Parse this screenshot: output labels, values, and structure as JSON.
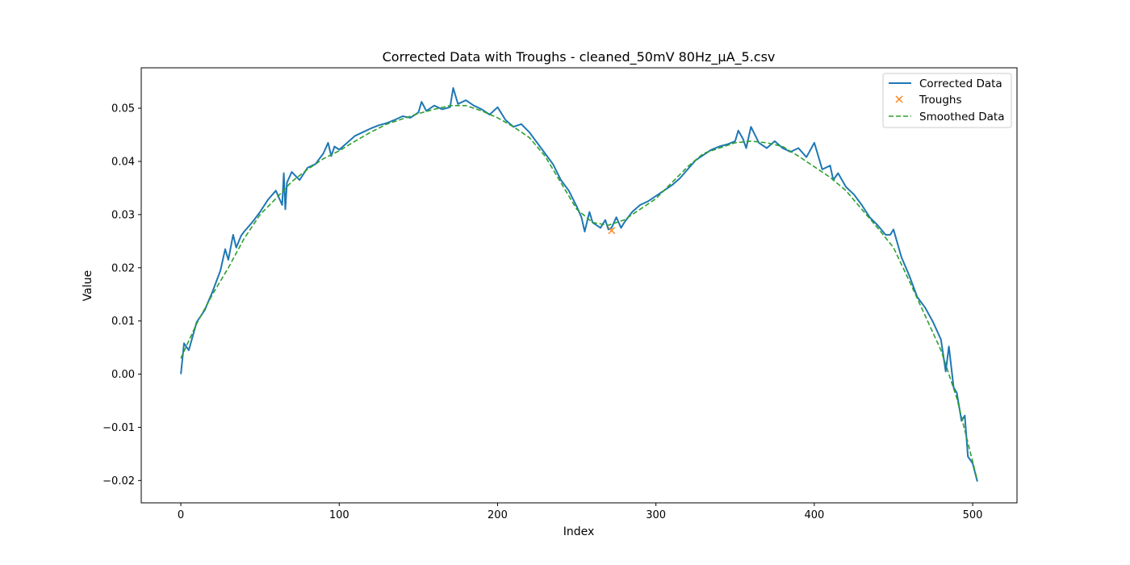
{
  "chart_data": {
    "type": "line",
    "title": "Corrected Data with Troughs - cleaned_50mV 80Hz_µA_5.csv",
    "xlabel": "Index",
    "ylabel": "Value",
    "xlim": [
      -25,
      528
    ],
    "ylim": [
      -0.0242,
      0.0576
    ],
    "x_ticks": [
      0,
      100,
      200,
      300,
      400,
      500
    ],
    "y_ticks": [
      -0.02,
      -0.01,
      0.0,
      0.01,
      0.02,
      0.03,
      0.04,
      0.05
    ],
    "x_tick_labels": [
      "0",
      "100",
      "200",
      "300",
      "400",
      "500"
    ],
    "y_tick_labels": [
      "−0.02",
      "−0.01",
      "0.00",
      "0.01",
      "0.02",
      "0.03",
      "0.04",
      "0.05"
    ],
    "grid": false,
    "legend_position": "top-right",
    "legend": [
      "Corrected Data",
      "Troughs",
      "Smoothed Data"
    ],
    "colors": {
      "corrected": "#1f77b4",
      "troughs": "#ff7f0e",
      "smoothed": "#2ca02c"
    },
    "series": [
      {
        "name": "Corrected Data",
        "style": "solid",
        "x": [
          0,
          2,
          5,
          10,
          15,
          20,
          25,
          28,
          30,
          33,
          35,
          38,
          40,
          45,
          50,
          55,
          60,
          64,
          65,
          66,
          67,
          70,
          75,
          80,
          85,
          90,
          93,
          95,
          97,
          100,
          105,
          110,
          115,
          120,
          125,
          130,
          135,
          140,
          145,
          150,
          152,
          155,
          160,
          165,
          170,
          172,
          175,
          180,
          185,
          190,
          195,
          200,
          205,
          210,
          215,
          220,
          225,
          230,
          235,
          240,
          245,
          250,
          253,
          255,
          258,
          260,
          265,
          268,
          270,
          272,
          275,
          278,
          280,
          285,
          290,
          295,
          300,
          305,
          310,
          315,
          320,
          325,
          330,
          335,
          340,
          345,
          350,
          352,
          355,
          357,
          360,
          365,
          370,
          375,
          380,
          385,
          390,
          395,
          400,
          405,
          410,
          412,
          415,
          420,
          425,
          430,
          435,
          440,
          445,
          448,
          450,
          455,
          460,
          465,
          470,
          475,
          480,
          483,
          485,
          488,
          490,
          493,
          495,
          497,
          500,
          503
        ],
        "y": [
          0.0,
          0.0058,
          0.0045,
          0.0098,
          0.012,
          0.0155,
          0.0195,
          0.0235,
          0.0215,
          0.0262,
          0.0238,
          0.026,
          0.0268,
          0.0285,
          0.0305,
          0.0328,
          0.0345,
          0.0318,
          0.0378,
          0.031,
          0.036,
          0.038,
          0.0365,
          0.0388,
          0.0395,
          0.0415,
          0.0435,
          0.041,
          0.0428,
          0.0422,
          0.0435,
          0.0448,
          0.0455,
          0.0462,
          0.0468,
          0.0472,
          0.0478,
          0.0485,
          0.0482,
          0.0492,
          0.0512,
          0.0495,
          0.0505,
          0.0498,
          0.0502,
          0.0538,
          0.0508,
          0.0515,
          0.0505,
          0.0498,
          0.0488,
          0.0502,
          0.0478,
          0.0465,
          0.047,
          0.0455,
          0.0435,
          0.0415,
          0.0395,
          0.0365,
          0.0345,
          0.0315,
          0.0295,
          0.0268,
          0.0305,
          0.0285,
          0.0275,
          0.029,
          0.0272,
          0.0275,
          0.0295,
          0.0275,
          0.0285,
          0.0305,
          0.0318,
          0.0325,
          0.0335,
          0.0345,
          0.0355,
          0.0368,
          0.0385,
          0.0402,
          0.0412,
          0.0422,
          0.0428,
          0.0432,
          0.0438,
          0.0458,
          0.0442,
          0.0425,
          0.0465,
          0.0435,
          0.0425,
          0.0438,
          0.0425,
          0.0418,
          0.0425,
          0.0408,
          0.0435,
          0.0385,
          0.0392,
          0.0365,
          0.0378,
          0.0352,
          0.0338,
          0.0318,
          0.0295,
          0.028,
          0.0262,
          0.0262,
          0.0272,
          0.022,
          0.0185,
          0.0145,
          0.0125,
          0.0098,
          0.0065,
          0.0005,
          0.0052,
          -0.0025,
          -0.0035,
          -0.0088,
          -0.0078,
          -0.0155,
          -0.0168,
          -0.0202
        ]
      },
      {
        "name": "Troughs",
        "style": "marker",
        "x": [
          272
        ],
        "y": [
          0.027
        ]
      },
      {
        "name": "Smoothed Data",
        "style": "dashed",
        "x": [
          0,
          10,
          20,
          30,
          40,
          50,
          60,
          70,
          80,
          90,
          100,
          110,
          120,
          130,
          140,
          150,
          160,
          170,
          180,
          190,
          200,
          210,
          220,
          230,
          240,
          250,
          260,
          270,
          280,
          290,
          300,
          310,
          320,
          330,
          340,
          350,
          360,
          370,
          380,
          390,
          400,
          410,
          420,
          430,
          440,
          450,
          460,
          470,
          480,
          490,
          500,
          503
        ],
        "y": [
          0.003,
          0.0095,
          0.015,
          0.02,
          0.0255,
          0.03,
          0.033,
          0.0362,
          0.0385,
          0.0405,
          0.042,
          0.0438,
          0.0455,
          0.047,
          0.048,
          0.049,
          0.0498,
          0.0505,
          0.0505,
          0.0495,
          0.0482,
          0.0465,
          0.0445,
          0.041,
          0.036,
          0.031,
          0.0285,
          0.028,
          0.029,
          0.031,
          0.033,
          0.036,
          0.039,
          0.0415,
          0.0425,
          0.0435,
          0.0438,
          0.0435,
          0.0428,
          0.041,
          0.039,
          0.037,
          0.0345,
          0.031,
          0.0275,
          0.0238,
          0.0175,
          0.011,
          0.0045,
          -0.0045,
          -0.0165,
          -0.02
        ]
      }
    ]
  }
}
